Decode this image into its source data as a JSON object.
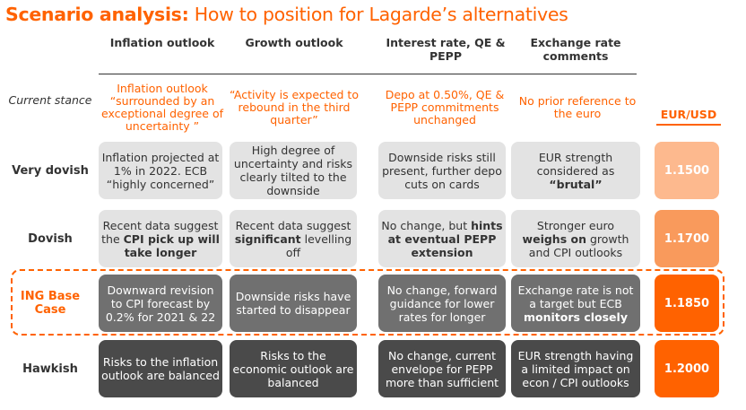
{
  "title": {
    "bold": "Scenario analysis:",
    "rest": " How to position for Lagarde’s alternatives"
  },
  "columns": [
    "Inflation outlook",
    "Growth outlook",
    "Interest rate, QE & PEPP",
    "Exchange rate comments"
  ],
  "current_stance": {
    "label": "Current stance",
    "cells": [
      "Inflation outlook “surrounded by an exceptional degree of uncertainty ”",
      "“Activity is expected to rebound in the third quarter”",
      "Depo at 0.50%, QE & PEPP commitments unchanged",
      "No prior reference to the euro"
    ]
  },
  "fx_header": "EUR/USD",
  "rows": [
    {
      "label": "Very dovish",
      "fx": "1.1500",
      "fx_color": "#fdb98e",
      "cells": [
        {
          "pre": "Inflation projected at 1% in 2022. ECB “highly concerned”",
          "bold": "",
          "post": ""
        },
        {
          "pre": "High degree of uncertainty and risks clearly tilted to the downside",
          "bold": "",
          "post": ""
        },
        {
          "pre": "Downside risks still present, further depo cuts on cards",
          "bold": "",
          "post": ""
        },
        {
          "pre": "EUR strength considered as ",
          "bold": "“brutal”",
          "post": ""
        }
      ]
    },
    {
      "label": "Dovish",
      "fx": "1.1700",
      "fx_color": "#f99a5c",
      "cells": [
        {
          "pre": "Recent data suggest the ",
          "bold": "CPI pick up will take longer",
          "post": ""
        },
        {
          "pre": "Recent data suggest ",
          "bold": "significant",
          "post": " levelling off"
        },
        {
          "pre": "No change, but ",
          "bold": "hints at eventual PEPP extension",
          "post": ""
        },
        {
          "pre": "Stronger euro ",
          "bold": "weighs on",
          "post": " growth and CPI outlooks"
        }
      ]
    },
    {
      "label": "ING Base Case",
      "fx": "1.1850",
      "fx_color": "#ff6200",
      "cells": [
        {
          "pre": "Downward revision to CPI forecast by 0.2% for 2021 & 22",
          "bold": "",
          "post": ""
        },
        {
          "pre": "Downside risks have started to disappear",
          "bold": "",
          "post": ""
        },
        {
          "pre": "No change, forward guidance for lower rates for longer",
          "bold": "",
          "post": ""
        },
        {
          "pre": "Exchange rate is not a target but ECB ",
          "bold": "monitors closely",
          "post": ""
        }
      ]
    },
    {
      "label": "Hawkish",
      "fx": "1.2000",
      "fx_color": "#ff6200",
      "cells": [
        {
          "pre": "Risks to the inflation outlook are balanced",
          "bold": "",
          "post": ""
        },
        {
          "pre": "Risks to the economic outlook are balanced",
          "bold": "",
          "post": ""
        },
        {
          "pre": "No change, current envelope for PEPP more than sufficient",
          "bold": "",
          "post": ""
        },
        {
          "pre": "EUR strength having a limited impact on econ / CPI outlooks",
          "bold": "",
          "post": ""
        }
      ]
    }
  ]
}
